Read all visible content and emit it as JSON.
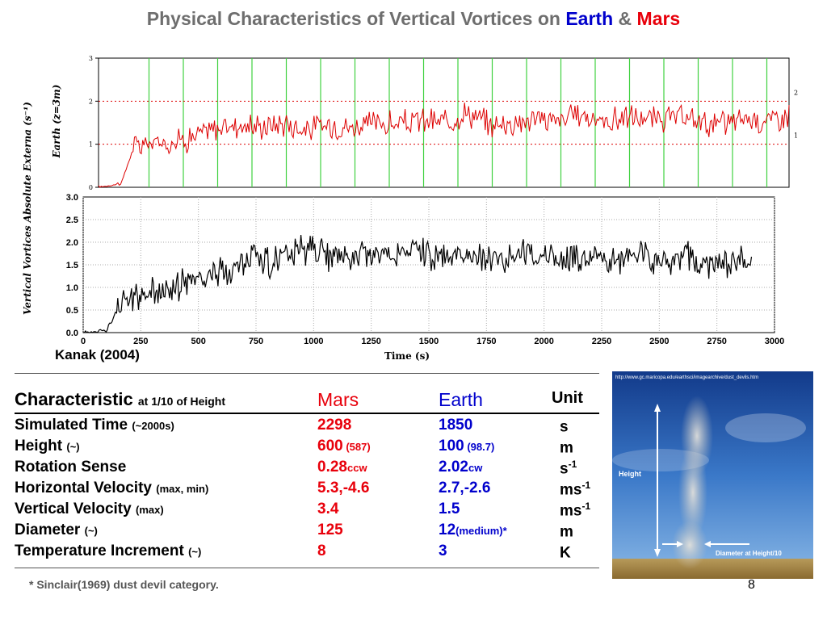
{
  "title": {
    "prefix": "Physical Characteristics of Vertical Vortices on ",
    "earth": "Earth",
    "amp": " & ",
    "mars": "Mars"
  },
  "chart_data": [
    {
      "type": "line",
      "ylabel": "Earth (z=3m)",
      "ylim": [
        0,
        3
      ],
      "yticks": [
        "0",
        "1",
        "2",
        "3"
      ],
      "grid": "vertical green lines",
      "reference_lines": [
        {
          "value": 1,
          "label": "1",
          "style": "red dotted"
        },
        {
          "value": 2,
          "label": "2",
          "style": "red dotted"
        }
      ],
      "series": [
        {
          "color": "#dd0000",
          "x": [
            0,
            100,
            150,
            200,
            300,
            400,
            500,
            600,
            700,
            800,
            900,
            1000,
            1100,
            1200,
            1300,
            1400,
            1500,
            1600,
            1700,
            1800,
            1900,
            2000,
            2100,
            2200,
            2300,
            2400,
            2500,
            2600,
            2700,
            2800,
            2900,
            3000
          ],
          "y": [
            0,
            0.1,
            0.9,
            1.0,
            1.05,
            1.15,
            1.35,
            1.45,
            1.4,
            1.5,
            1.35,
            1.45,
            1.4,
            1.5,
            1.45,
            1.55,
            1.5,
            1.75,
            1.45,
            1.5,
            1.6,
            1.55,
            1.7,
            1.5,
            1.65,
            1.55,
            1.6,
            1.55,
            1.45,
            1.6,
            1.55,
            1.7
          ]
        }
      ]
    },
    {
      "type": "line",
      "xlabel": "Time (s)",
      "ylim": [
        0,
        3
      ],
      "xlim": [
        0,
        3000
      ],
      "xticks": [
        "0",
        "250",
        "500",
        "750",
        "1000",
        "1250",
        "1500",
        "1750",
        "2000",
        "2250",
        "2500",
        "2750",
        "3000"
      ],
      "yticks": [
        "0.0",
        "0.5",
        "1.0",
        "1.5",
        "2.0",
        "2.5",
        "3.0"
      ],
      "grid": "dotted",
      "series": [
        {
          "color": "#000000",
          "x": [
            0,
            100,
            150,
            200,
            300,
            400,
            500,
            600,
            700,
            750,
            800,
            900,
            1000,
            1100,
            1200,
            1300,
            1400,
            1500,
            1600,
            1700,
            1800,
            1900,
            2000,
            2100,
            2200,
            2300,
            2400,
            2500,
            2600,
            2700,
            2800,
            2900
          ],
          "y": [
            0,
            0.05,
            0.5,
            0.75,
            0.9,
            1.0,
            1.2,
            1.35,
            1.5,
            1.75,
            1.55,
            1.7,
            1.85,
            1.65,
            1.75,
            1.7,
            1.8,
            1.75,
            1.6,
            1.7,
            1.65,
            1.75,
            1.7,
            1.6,
            1.65,
            1.55,
            1.75,
            1.6,
            1.7,
            1.55,
            1.45,
            1.65
          ]
        }
      ]
    }
  ],
  "figure": {
    "y_axis_title": "Vertical Vortices Absolute Externa (s⁻¹)",
    "top_y_label": "Earth (z=3m)",
    "credit": "Kanak (2004)",
    "x_axis_title": "Time (s)"
  },
  "table": {
    "header": {
      "c1": "Characteristic",
      "c1_small": "at 1/10 of Height",
      "c2": "Mars",
      "c3": "Earth",
      "c4": "Unit"
    },
    "rows": [
      {
        "name": "Simulated Time",
        "qual": "(~2000s)",
        "mars": "2298",
        "mars_small": "",
        "earth": "1850",
        "earth_small": "",
        "unit": "s",
        "unit_sup": ""
      },
      {
        "name": "Height",
        "qual": "(~)",
        "mars": "600",
        "mars_small": " (587)",
        "earth": "100",
        "earth_small": " (98.7)",
        "unit": "m",
        "unit_sup": ""
      },
      {
        "name": "Rotation Sense",
        "qual": "",
        "mars": "0.28",
        "mars_small": "ccw",
        "earth": "2.02",
        "earth_small": "cw",
        "unit": "s",
        "unit_sup": "-1"
      },
      {
        "name": "Horizontal Velocity",
        "qual": "(max, min)",
        "mars": "5.3,-4.6",
        "mars_small": "",
        "earth": "2.7,-2.6",
        "earth_small": "",
        "unit": "ms",
        "unit_sup": "-1"
      },
      {
        "name": "Vertical Velocity",
        "qual": "(max)",
        "mars": "3.4",
        "mars_small": "",
        "earth": "1.5",
        "earth_small": "",
        "unit": "ms",
        "unit_sup": "-1"
      },
      {
        "name": "Diameter",
        "qual": "(~)",
        "mars": "125",
        "mars_small": "",
        "earth": "12",
        "earth_small": "(medium)*",
        "unit": "m",
        "unit_sup": ""
      },
      {
        "name": "Temperature Increment",
        "qual": "(~)",
        "mars": "8",
        "mars_small": "",
        "earth": "3",
        "earth_small": "",
        "unit": "K",
        "unit_sup": ""
      }
    ]
  },
  "photo": {
    "url_text": "http://www.gc.maricopa.edu/earthsci/imagearchive/dust_devils.htm",
    "height_label": "Height",
    "diameter_label": "Diameter at Height/10"
  },
  "footnote": "* Sinclair(1969) dust devil category.",
  "page_number": "8"
}
